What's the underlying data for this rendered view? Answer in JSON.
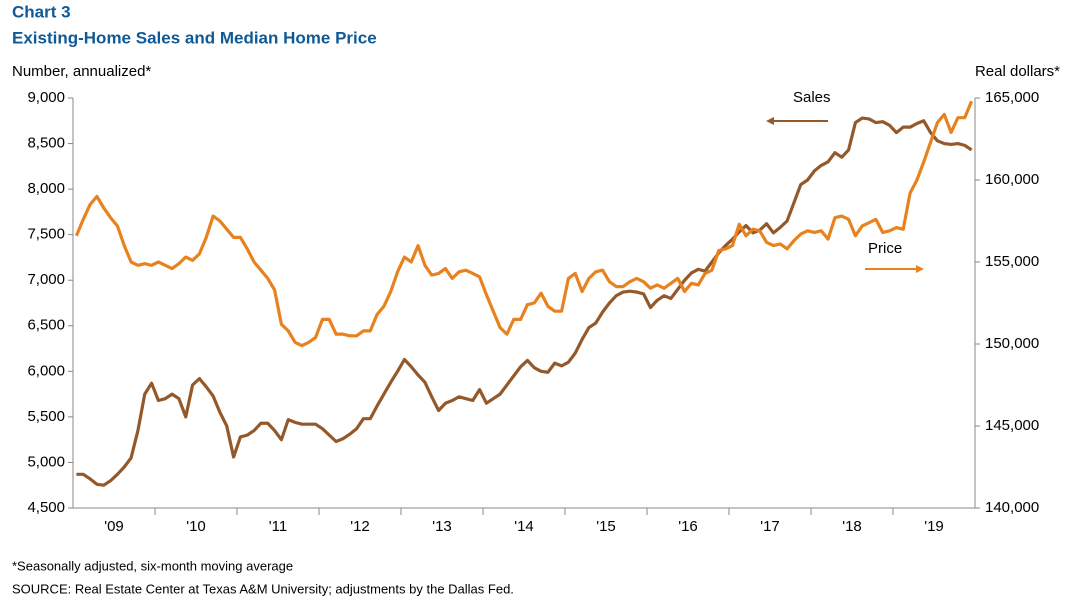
{
  "chart_data": {
    "type": "line",
    "title": "Chart 3",
    "subtitle": "Existing-Home Sales and Median Home Price",
    "y_label": "Number,  annualized*",
    "y2_label": "Real dollars*",
    "notes": [
      "*Seasonally adjusted, six-month moving average",
      "SOURCE:  Real Estate Center at Texas A&M University; adjustments by the Dallas Fed."
    ],
    "categories": [
      null,
      null,
      null,
      null,
      null,
      null,
      "'09",
      null,
      null,
      null,
      null,
      null,
      null,
      null,
      null,
      null,
      null,
      null,
      "'10",
      null,
      null,
      null,
      null,
      null,
      null,
      null,
      null,
      null,
      null,
      null,
      "'11",
      null,
      null,
      null,
      null,
      null,
      null,
      null,
      null,
      null,
      null,
      null,
      "'12",
      null,
      null,
      null,
      null,
      null,
      null,
      null,
      null,
      null,
      null,
      null,
      "'13",
      null,
      null,
      null,
      null,
      null,
      null,
      null,
      null,
      null,
      null,
      null,
      "'14",
      null,
      null,
      null,
      null,
      null,
      null,
      null,
      null,
      null,
      null,
      null,
      "'15",
      null,
      null,
      null,
      null,
      null,
      null,
      null,
      null,
      null,
      null,
      null,
      "'16",
      null,
      null,
      null,
      null,
      null,
      null,
      null,
      null,
      null,
      null,
      null,
      "'17",
      null,
      null,
      null,
      null,
      null,
      null,
      null,
      null,
      null,
      null,
      null,
      "'18",
      null,
      null,
      null,
      null,
      null,
      null,
      null,
      null,
      null,
      null,
      null,
      "'19",
      null,
      null,
      null,
      null,
      null
    ],
    "series": [
      {
        "name": "Sales",
        "color": "#94592b",
        "axis": "y",
        "values": [
          4870,
          4870,
          4820,
          4760,
          4750,
          4800,
          4870,
          4950,
          5050,
          5350,
          5750,
          5870,
          5680,
          5700,
          5750,
          5700,
          5500,
          5850,
          5920,
          5830,
          5730,
          5550,
          5400,
          5060,
          5280,
          5300,
          5350,
          5430,
          5430,
          5350,
          5250,
          5470,
          5440,
          5420,
          5420,
          5420,
          5370,
          5300,
          5230,
          5260,
          5310,
          5370,
          5480,
          5480,
          5620,
          5750,
          5880,
          6000,
          6130,
          6050,
          5960,
          5880,
          5720,
          5570,
          5650,
          5680,
          5720,
          5700,
          5680,
          5800,
          5650,
          5700,
          5750,
          5850,
          5950,
          6050,
          6120,
          6040,
          6000,
          5990,
          6090,
          6060,
          6100,
          6200,
          6350,
          6480,
          6530,
          6650,
          6750,
          6830,
          6870,
          6880,
          6870,
          6850,
          6700,
          6780,
          6830,
          6800,
          6900,
          7000,
          7080,
          7120,
          7100,
          7200,
          7300,
          7380,
          7450,
          7530,
          7600,
          7520,
          7550,
          7620,
          7520,
          7580,
          7650,
          7850,
          8050,
          8100,
          8200,
          8260,
          8300,
          8400,
          8350,
          8430,
          8730,
          8780,
          8770,
          8730,
          8740,
          8700,
          8620,
          8680,
          8680,
          8720,
          8750,
          8620,
          8530,
          8500,
          8490,
          8500,
          8480,
          8430
        ]
      },
      {
        "name": "Price",
        "color": "#e8821e",
        "axis": "y2",
        "values": [
          156600,
          157600,
          158500,
          159000,
          158300,
          157700,
          157200,
          156000,
          155000,
          154800,
          154900,
          154800,
          155000,
          154800,
          154600,
          154900,
          155300,
          155100,
          155500,
          156500,
          157800,
          157500,
          157000,
          156500,
          156500,
          155800,
          155000,
          154500,
          154000,
          153300,
          151200,
          150800,
          150100,
          149900,
          150100,
          150400,
          151500,
          151500,
          150600,
          150600,
          150500,
          150500,
          150800,
          150800,
          151800,
          152300,
          153200,
          154400,
          155300,
          155000,
          156000,
          154800,
          154200,
          154300,
          154600,
          154000,
          154400,
          154500,
          154300,
          154100,
          153000,
          152000,
          151000,
          150600,
          151500,
          151500,
          152400,
          152500,
          153100,
          152300,
          152000,
          152000,
          154000,
          154300,
          153200,
          154000,
          154400,
          154500,
          153800,
          153500,
          153500,
          153800,
          154000,
          153800,
          153400,
          153600,
          153400,
          153700,
          154000,
          153200,
          153700,
          153600,
          154300,
          154500,
          155700,
          155800,
          156000,
          157300,
          156600,
          157000,
          156900,
          156200,
          156000,
          156100,
          155800,
          156300,
          156700,
          156900,
          156800,
          156900,
          156400,
          157700,
          157800,
          157600,
          156600,
          157200,
          157400,
          157600,
          156800,
          156900,
          157100,
          157000,
          159200,
          160000,
          161100,
          162300,
          163500,
          164000,
          162900,
          163800,
          163800,
          164800
        ]
      }
    ],
    "ylim": [
      4500,
      9000
    ],
    "yticks": [
      {
        "value": 4500,
        "label": "4,500"
      },
      {
        "value": 5000,
        "label": "5,000"
      },
      {
        "value": 5500,
        "label": "5,500"
      },
      {
        "value": 6000,
        "label": "6,000"
      },
      {
        "value": 6500,
        "label": "6,500"
      },
      {
        "value": 7000,
        "label": "7,000"
      },
      {
        "value": 7500,
        "label": "7,500"
      },
      {
        "value": 8000,
        "label": "8,000"
      },
      {
        "value": 8500,
        "label": "8,500"
      },
      {
        "value": 9000,
        "label": "9,000"
      }
    ],
    "y2lim": [
      140000,
      165000
    ],
    "y2ticks": [
      {
        "value": 140000,
        "label": "140,000"
      },
      {
        "value": 145000,
        "label": "145,000"
      },
      {
        "value": 150000,
        "label": "150,000"
      },
      {
        "value": 155000,
        "label": "155,000"
      },
      {
        "value": 160000,
        "label": "160,000"
      },
      {
        "value": 165000,
        "label": "165,000"
      }
    ],
    "grid": false
  }
}
